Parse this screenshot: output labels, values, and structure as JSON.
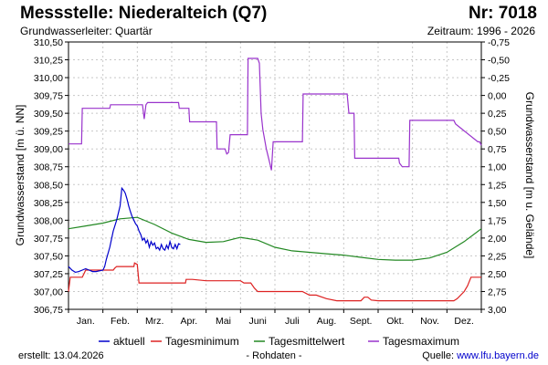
{
  "header": {
    "title": "Messstelle: Niederalteich (Q7)",
    "number": "Nr: 7018",
    "aquifer": "Grundwasserleiter: Quartär",
    "period": "Zeitraum: 1996 - 2026"
  },
  "footer": {
    "created": "erstellt:  13.04.2026",
    "status": "- Rohdaten -",
    "source_label": "Quelle: ",
    "source_link": "www.lfu.bayern.de"
  },
  "chart_data": {
    "type": "line",
    "ylabel": "Grundwasserstand [m ü. NN]",
    "ylabel_right": "Grundwasserstand [m u. Gelände]",
    "ylim": [
      306.75,
      310.5
    ],
    "ylim_right": [
      -0.75,
      3.0
    ],
    "xlim": [
      0,
      12
    ],
    "grid": true,
    "legend_position": "bottom",
    "yticks": [
      "306,75",
      "307,00",
      "307,25",
      "307,50",
      "307,75",
      "308,00",
      "308,25",
      "308,50",
      "308,75",
      "309,00",
      "309,25",
      "309,50",
      "309,75",
      "310,00",
      "310,25",
      "310,50"
    ],
    "yticks_right": [
      "-0,75",
      "-0,50",
      "-0,25",
      "0,00",
      "0,25",
      "0,50",
      "0,75",
      "1,00",
      "1,25",
      "1,50",
      "1,75",
      "2,00",
      "2,25",
      "2,50",
      "2,75",
      "3,00"
    ],
    "months": [
      "Jan.",
      "Feb.",
      "Mrz.",
      "Apr.",
      "Mai",
      "Juni",
      "Juli",
      "Aug.",
      "Sept.",
      "Okt.",
      "Nov.",
      "Dez."
    ],
    "series": [
      {
        "name": "Tagesmaximum",
        "color": "#9933cc",
        "x": [
          0.0,
          0.38,
          0.4,
          1.2,
          1.22,
          2.15,
          2.2,
          2.25,
          2.3,
          3.2,
          3.22,
          3.5,
          3.52,
          4.3,
          4.32,
          4.5,
          4.55,
          4.6,
          4.65,
          4.7,
          5.2,
          5.22,
          5.5,
          5.55,
          5.6,
          5.65,
          5.75,
          5.85,
          5.9,
          5.95,
          6.1,
          6.12,
          6.8,
          6.82,
          8.1,
          8.15,
          8.3,
          8.32,
          9.3,
          9.32,
          9.6,
          9.62,
          9.7,
          9.9,
          9.92,
          10.2,
          10.22,
          11.2,
          11.25,
          11.9,
          11.95,
          12.0
        ],
        "y": [
          309.07,
          309.07,
          309.57,
          309.57,
          309.62,
          309.62,
          309.42,
          309.62,
          309.65,
          309.65,
          309.57,
          309.57,
          309.38,
          309.38,
          309.0,
          309.0,
          309.0,
          308.93,
          308.95,
          309.2,
          309.2,
          310.27,
          310.27,
          310.2,
          309.5,
          309.27,
          309.0,
          308.8,
          308.7,
          309.1,
          309.1,
          309.1,
          309.1,
          309.77,
          309.77,
          309.5,
          309.5,
          308.87,
          308.87,
          308.87,
          308.87,
          308.8,
          308.75,
          308.75,
          309.4,
          309.4,
          309.4,
          309.4,
          309.35,
          309.1,
          309.1,
          309.05
        ]
      },
      {
        "name": "Tagesmittelwert",
        "color": "#228822",
        "x": [
          0.0,
          0.5,
          1.0,
          1.5,
          2.0,
          2.5,
          3.0,
          3.5,
          4.0,
          4.5,
          5.0,
          5.5,
          6.0,
          6.5,
          7.0,
          7.5,
          8.0,
          8.5,
          9.0,
          9.5,
          10.0,
          10.5,
          11.0,
          11.5,
          12.0
        ],
        "y": [
          307.88,
          307.92,
          307.96,
          308.02,
          308.04,
          307.94,
          307.82,
          307.73,
          307.69,
          307.7,
          307.76,
          307.72,
          307.62,
          307.57,
          307.55,
          307.53,
          307.51,
          307.48,
          307.45,
          307.44,
          307.44,
          307.47,
          307.55,
          307.7,
          307.88
        ]
      },
      {
        "name": "Tagesminimum",
        "color": "#dd2222",
        "x": [
          0.0,
          0.05,
          0.1,
          0.4,
          0.45,
          0.5,
          1.3,
          1.35,
          1.4,
          1.9,
          1.92,
          2.0,
          2.05,
          2.1,
          3.4,
          3.42,
          3.5,
          3.6,
          4.0,
          4.02,
          5.0,
          5.1,
          5.3,
          5.4,
          5.5,
          6.4,
          6.8,
          7.0,
          7.2,
          7.5,
          7.8,
          8.5,
          8.6,
          8.7,
          8.8,
          9.0,
          9.5,
          10.0,
          10.5,
          11.0,
          11.1,
          11.2,
          11.3,
          11.5,
          11.6,
          11.7,
          12.0
        ],
        "y": [
          307.0,
          307.2,
          307.2,
          307.2,
          307.25,
          307.3,
          307.3,
          307.33,
          307.35,
          307.35,
          307.4,
          307.38,
          307.12,
          307.12,
          307.12,
          307.17,
          307.17,
          307.17,
          307.15,
          307.15,
          307.15,
          307.12,
          307.12,
          307.05,
          307.0,
          307.0,
          307.0,
          306.95,
          306.95,
          306.9,
          306.87,
          306.87,
          306.92,
          306.92,
          306.88,
          306.87,
          306.87,
          306.87,
          306.87,
          306.87,
          306.87,
          306.87,
          306.9,
          307.0,
          307.08,
          307.2,
          307.2
        ]
      },
      {
        "name": "aktuell",
        "color": "#0000cc",
        "x": [
          0.0,
          0.1,
          0.2,
          0.3,
          0.4,
          0.5,
          0.6,
          0.7,
          0.8,
          0.9,
          1.0,
          1.05,
          1.1,
          1.2,
          1.3,
          1.4,
          1.5,
          1.55,
          1.6,
          1.65,
          1.7,
          1.75,
          1.8,
          1.85,
          1.9,
          1.95,
          2.0,
          2.05,
          2.1,
          2.15,
          2.2,
          2.25,
          2.3,
          2.35,
          2.4,
          2.45,
          2.5,
          2.55,
          2.6,
          2.65,
          2.7,
          2.75,
          2.8,
          2.85,
          2.9,
          2.95,
          3.0,
          3.05,
          3.1,
          3.15,
          3.2,
          3.25
        ],
        "y": [
          307.35,
          307.3,
          307.27,
          307.28,
          307.3,
          307.32,
          307.3,
          307.28,
          307.28,
          307.29,
          307.3,
          307.35,
          307.45,
          307.62,
          307.85,
          308.0,
          308.2,
          308.45,
          308.42,
          308.38,
          308.3,
          308.2,
          308.12,
          308.05,
          308.0,
          307.95,
          307.92,
          307.85,
          307.8,
          307.72,
          307.75,
          307.68,
          307.72,
          307.62,
          307.7,
          307.65,
          307.68,
          307.6,
          307.62,
          307.58,
          307.66,
          307.6,
          307.58,
          307.65,
          307.6,
          307.7,
          307.62,
          307.6,
          307.66,
          307.6,
          307.67,
          307.66
        ]
      }
    ]
  }
}
